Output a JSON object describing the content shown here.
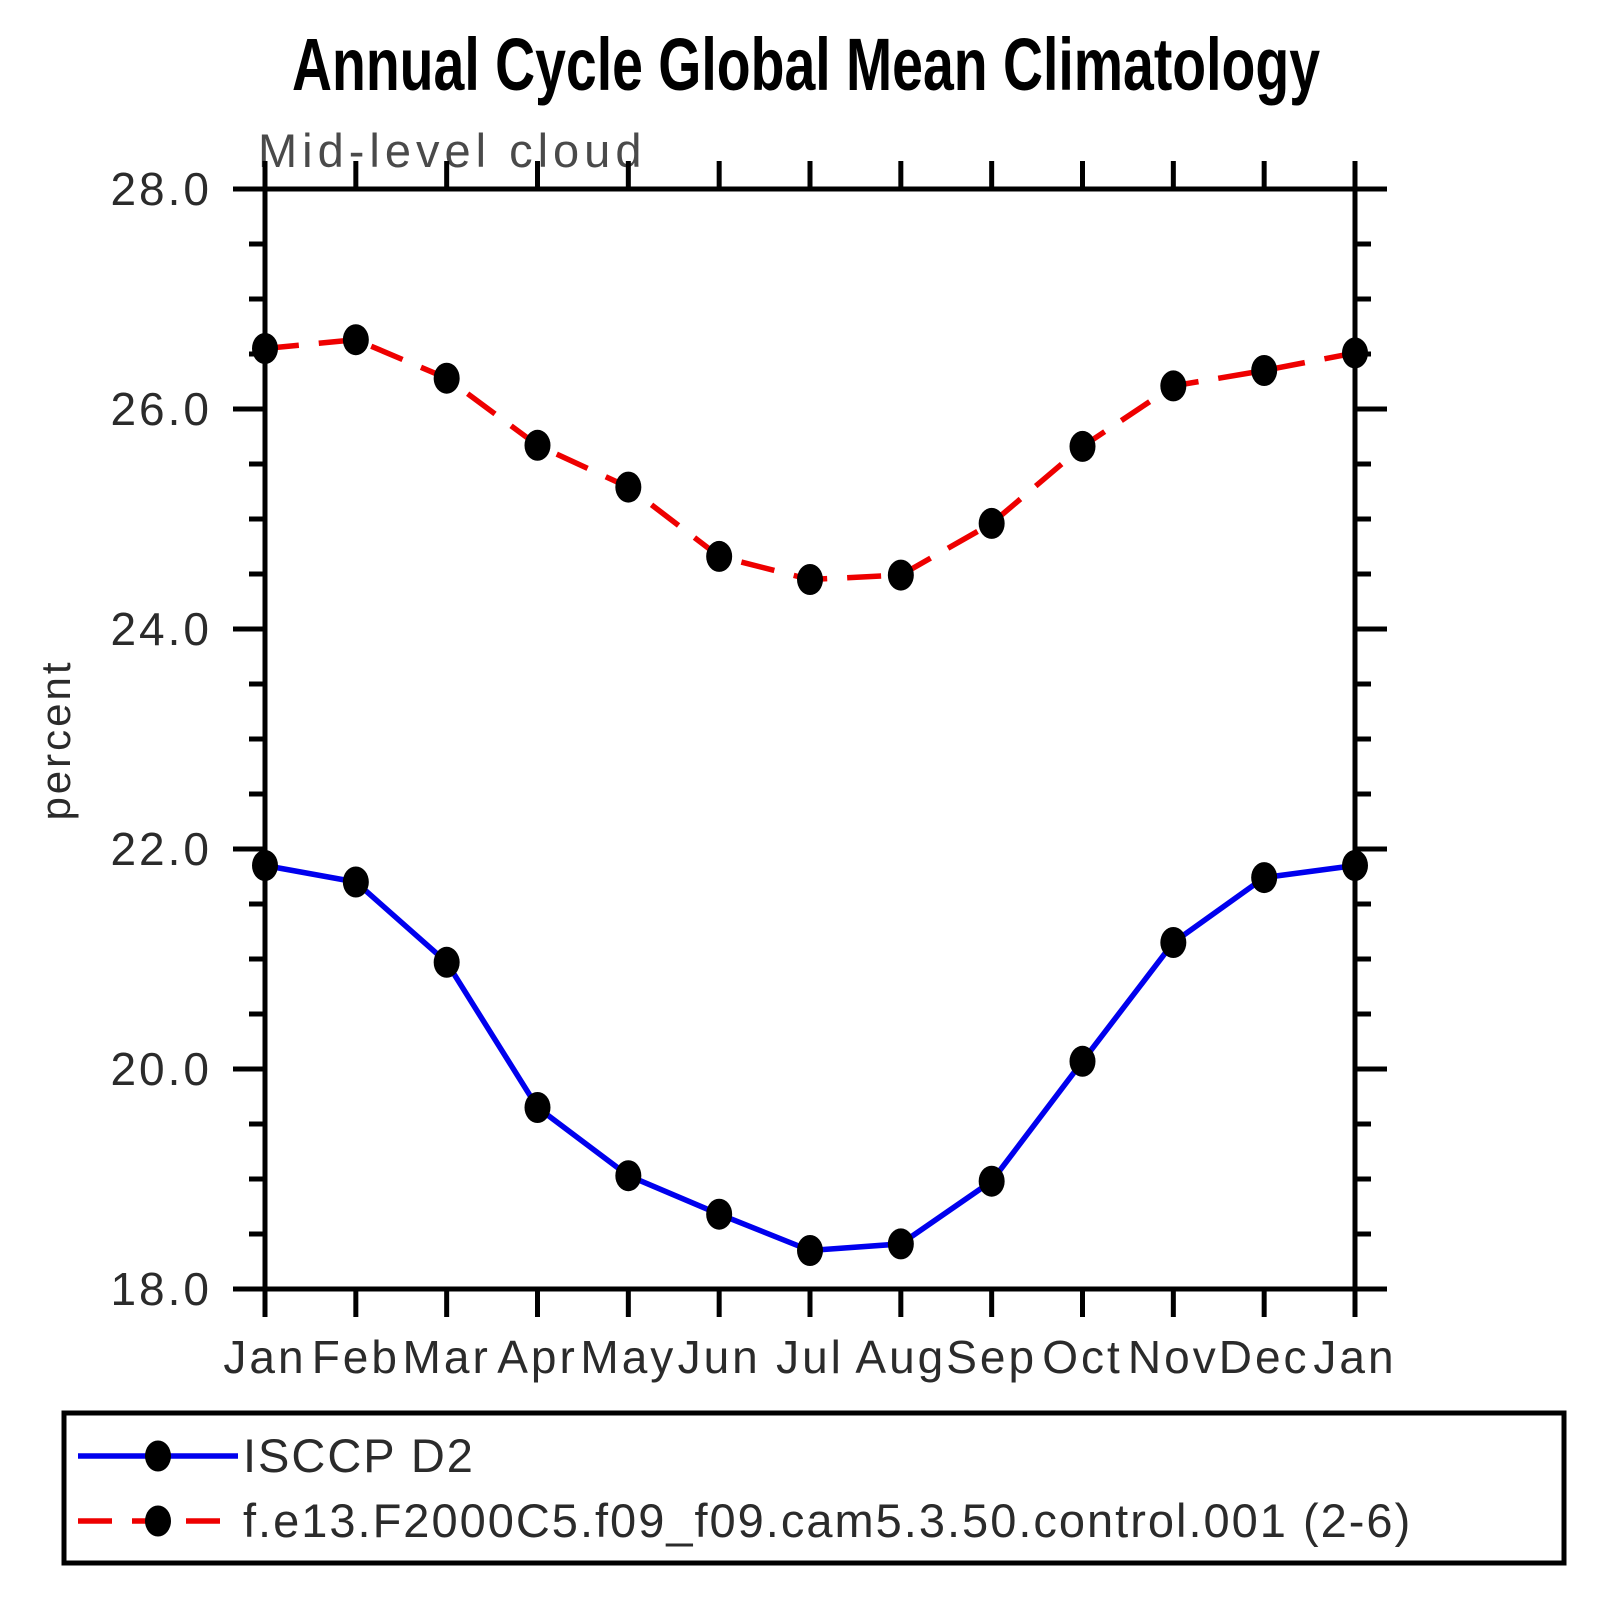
{
  "header": {
    "title": "Annual Cycle Global Mean Climatology",
    "subtitle": "Mid-level cloud"
  },
  "chart_data": {
    "type": "line",
    "title": "Annual Cycle Global Mean Climatology",
    "subtitle": "Mid-level cloud",
    "xlabel": "",
    "ylabel": "percent",
    "categories": [
      "Jan",
      "Feb",
      "Mar",
      "Apr",
      "May",
      "Jun",
      "Jul",
      "Aug",
      "Sep",
      "Oct",
      "Nov",
      "Dec",
      "Jan"
    ],
    "series": [
      {
        "name": "ISCCP D2",
        "color": "#0000ee",
        "line_style": "solid",
        "marker": "black-dot",
        "values": [
          21.85,
          21.7,
          20.97,
          19.65,
          19.03,
          18.68,
          18.35,
          18.41,
          18.98,
          20.07,
          21.15,
          21.74,
          21.85
        ]
      },
      {
        "name": "f.e13.F2000C5.f09_f09.cam5.3.50.control.001 (2-6)",
        "color": "#ee0000",
        "line_style": "dashed",
        "marker": "black-dot",
        "values": [
          26.55,
          26.63,
          26.28,
          25.67,
          25.29,
          24.66,
          24.45,
          24.49,
          24.96,
          25.66,
          26.21,
          26.35,
          26.51
        ]
      }
    ],
    "ylim": [
      18.0,
      28.0
    ],
    "ytick_major": [
      18.0,
      20.0,
      22.0,
      24.0,
      26.0,
      28.0
    ],
    "ytick_major_labels": [
      "18.0",
      "20.0",
      "22.0",
      "24.0",
      "26.0",
      "28.0"
    ],
    "ytick_minor_step": 0.5,
    "grid": false,
    "legend_position": "bottom",
    "marker_color": "#000000",
    "axis_color": "#000000"
  }
}
